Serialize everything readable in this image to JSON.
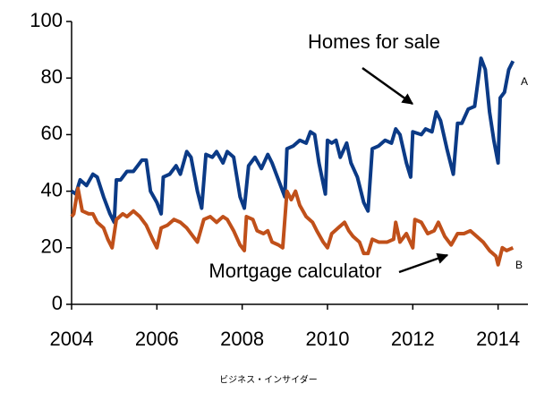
{
  "chart_data": {
    "type": "line",
    "xlim": [
      2004,
      2014.7
    ],
    "xticks": [
      2004,
      2006,
      2008,
      2010,
      2012,
      2014
    ],
    "ylim": [
      0,
      100
    ],
    "yticks": [
      0,
      20,
      40,
      60,
      80,
      100
    ],
    "annotations": [
      "Homes for sale",
      "Mortgage calculator"
    ],
    "source": "ビジネス・インサイダー",
    "series": [
      {
        "name": "A",
        "color": "#0b3a86",
        "x": [
          2004.0,
          2004.1,
          2004.2,
          2004.35,
          2004.5,
          2004.6,
          2004.75,
          2004.9,
          2005.0,
          2005.05,
          2005.15,
          2005.3,
          2005.45,
          2005.55,
          2005.65,
          2005.75,
          2005.85,
          2006.0,
          2006.1,
          2006.15,
          2006.3,
          2006.45,
          2006.55,
          2006.7,
          2006.8,
          2006.95,
          2007.05,
          2007.15,
          2007.3,
          2007.4,
          2007.55,
          2007.65,
          2007.8,
          2007.95,
          2008.05,
          2008.15,
          2008.3,
          2008.45,
          2008.6,
          2008.7,
          2008.85,
          2009.0,
          2009.05,
          2009.2,
          2009.35,
          2009.5,
          2009.6,
          2009.7,
          2009.8,
          2009.95,
          2010.0,
          2010.1,
          2010.2,
          2010.3,
          2010.45,
          2010.55,
          2010.7,
          2010.85,
          2010.95,
          2011.05,
          2011.2,
          2011.35,
          2011.5,
          2011.6,
          2011.7,
          2011.85,
          2011.95,
          2012.0,
          2012.2,
          2012.3,
          2012.45,
          2012.55,
          2012.65,
          2012.8,
          2012.95,
          2013.05,
          2013.15,
          2013.3,
          2013.45,
          2013.6,
          2013.7,
          2013.8,
          2013.9,
          2014.0,
          2014.05,
          2014.15,
          2014.25,
          2014.35
        ],
        "values": [
          40,
          39,
          44,
          42,
          46,
          45,
          38,
          32,
          29,
          44,
          44,
          47,
          47,
          49,
          51,
          51,
          40,
          36,
          32,
          45,
          46,
          49,
          46,
          54,
          52,
          40,
          34,
          53,
          52,
          54,
          50,
          54,
          52,
          38,
          34,
          49,
          52,
          48,
          53,
          50,
          44,
          38,
          55,
          56,
          58,
          57,
          61,
          60,
          50,
          39,
          58,
          57,
          58,
          52,
          57,
          50,
          45,
          36,
          33,
          55,
          56,
          58,
          57,
          62,
          60,
          50,
          45,
          61,
          60,
          62,
          61,
          68,
          65,
          55,
          46,
          64,
          64,
          69,
          70,
          87,
          83,
          68,
          58,
          50,
          73,
          75,
          83,
          86
        ]
      },
      {
        "name": "B",
        "color": "#c0501a",
        "x": [
          2004.0,
          2004.05,
          2004.15,
          2004.25,
          2004.4,
          2004.5,
          2004.6,
          2004.75,
          2004.85,
          2004.95,
          2005.05,
          2005.2,
          2005.3,
          2005.45,
          2005.6,
          2005.75,
          2005.9,
          2006.0,
          2006.1,
          2006.25,
          2006.4,
          2006.55,
          2006.7,
          2006.85,
          2006.95,
          2007.1,
          2007.25,
          2007.4,
          2007.55,
          2007.65,
          2007.8,
          2007.95,
          2008.05,
          2008.1,
          2008.25,
          2008.35,
          2008.5,
          2008.6,
          2008.7,
          2008.85,
          2008.95,
          2009.05,
          2009.15,
          2009.25,
          2009.35,
          2009.5,
          2009.65,
          2009.75,
          2009.9,
          2010.0,
          2010.1,
          2010.25,
          2010.4,
          2010.5,
          2010.6,
          2010.75,
          2010.85,
          2010.95,
          2011.05,
          2011.2,
          2011.4,
          2011.55,
          2011.6,
          2011.7,
          2011.85,
          2012.0,
          2012.05,
          2012.2,
          2012.35,
          2012.5,
          2012.6,
          2012.75,
          2012.9,
          2013.05,
          2013.2,
          2013.35,
          2013.5,
          2013.65,
          2013.8,
          2013.95,
          2014.0,
          2014.1,
          2014.2,
          2014.35
        ],
        "values": [
          31,
          32,
          41,
          33,
          32,
          32,
          29,
          27,
          23,
          20,
          30,
          32,
          31,
          33,
          31,
          28,
          23,
          20,
          27,
          28,
          30,
          29,
          27,
          24,
          22,
          30,
          31,
          29,
          31,
          30,
          26,
          21,
          19,
          31,
          30,
          26,
          25,
          26,
          22,
          21,
          20,
          40,
          37,
          40,
          35,
          31,
          29,
          26,
          22,
          20,
          25,
          27,
          29,
          26,
          24,
          22,
          18,
          18,
          23,
          22,
          22,
          23,
          29,
          22,
          25,
          20,
          30,
          29,
          25,
          26,
          29,
          24,
          21,
          25,
          25,
          26,
          24,
          22,
          19,
          17,
          14,
          20,
          19,
          20
        ]
      }
    ]
  }
}
